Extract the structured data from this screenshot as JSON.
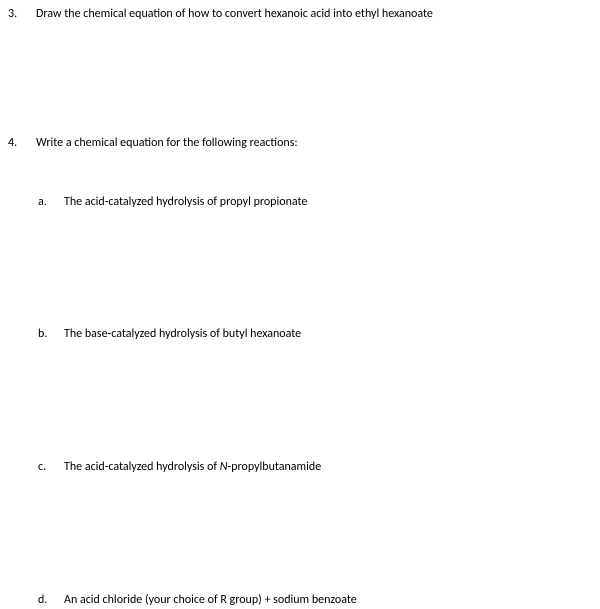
{
  "text_color": "#000000",
  "background_color": "#ffffff",
  "font_family": "Calibri, Arial, sans-serif",
  "font_size_pt": 9,
  "q3": {
    "num": "3.",
    "text": "Draw the chemical equation of how to convert hexanoic acid into ethyl hexanoate"
  },
  "q4": {
    "num": "4.",
    "text": "Write a chemical equation for the following reactions:",
    "subs": {
      "a": {
        "letter": "a.",
        "text": "The acid-catalyzed hydrolysis of propyl propionate"
      },
      "b": {
        "letter": "b.",
        "text": "The base-catalyzed hydrolysis of butyl hexanoate"
      },
      "c": {
        "letter": "c.",
        "prefix": "The acid-catalyzed hydrolysis of ",
        "italic": "N",
        "suffix": "-propylbutanamide"
      },
      "d": {
        "letter": "d.",
        "text": "An acid chloride (your choice of R group) + sodium benzoate"
      }
    }
  }
}
